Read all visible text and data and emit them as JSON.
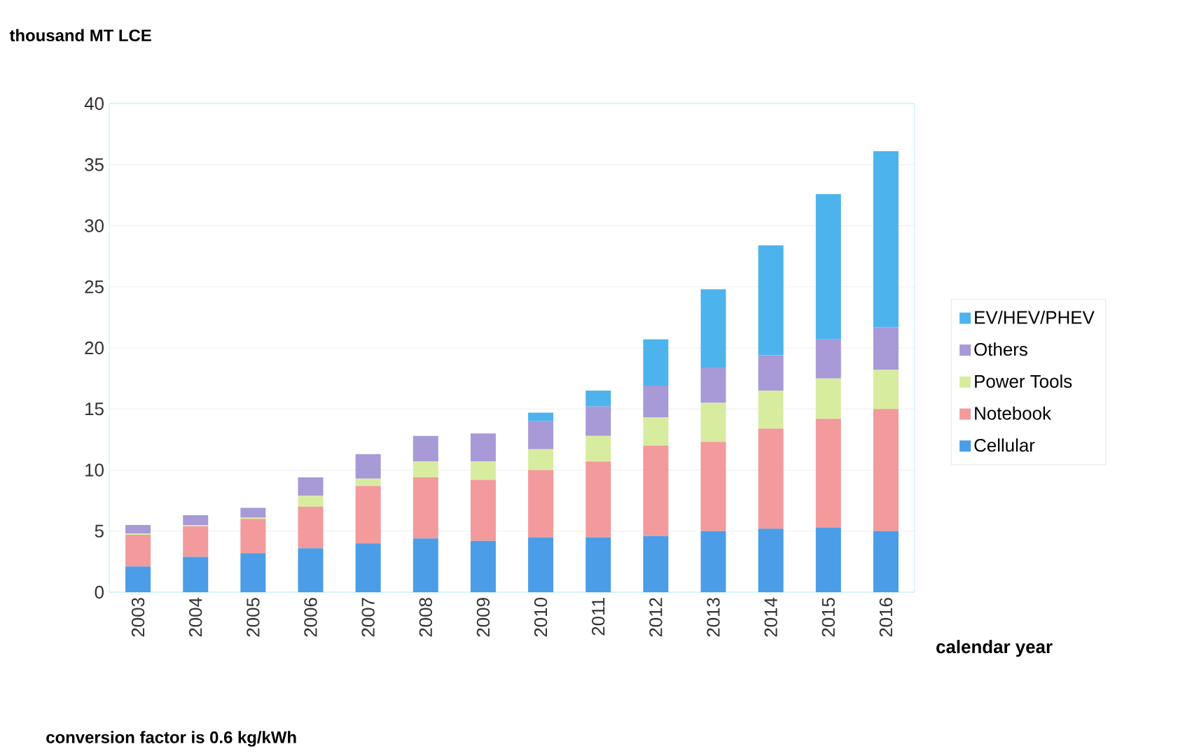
{
  "chart_data": {
    "type": "bar",
    "stacked": true,
    "ylabel": "thousand MT LCE",
    "xlabel": "calendar year",
    "categories": [
      "2003",
      "2004",
      "2005",
      "2006",
      "2007",
      "2008",
      "2009",
      "2010",
      "2011",
      "2012",
      "2013",
      "2014",
      "2015",
      "2016"
    ],
    "series": [
      {
        "name": "Cellular",
        "color": "#4a9de6",
        "values": [
          2.1,
          2.9,
          3.2,
          3.6,
          4.0,
          4.4,
          4.2,
          4.5,
          4.5,
          4.6,
          5.0,
          5.2,
          5.3,
          5.0
        ]
      },
      {
        "name": "Notebook",
        "color": "#f29a9c",
        "values": [
          2.6,
          2.5,
          2.8,
          3.4,
          4.7,
          5.0,
          5.0,
          5.5,
          6.2,
          7.4,
          7.3,
          8.2,
          8.9,
          10.0
        ]
      },
      {
        "name": "Power Tools",
        "color": "#d8eca0",
        "values": [
          0.1,
          0.1,
          0.1,
          0.9,
          0.6,
          1.3,
          1.5,
          1.7,
          2.1,
          2.3,
          3.2,
          3.1,
          3.3,
          3.2
        ]
      },
      {
        "name": "Others",
        "color": "#a79ad6",
        "values": [
          0.7,
          0.8,
          0.8,
          1.5,
          2.0,
          2.1,
          2.3,
          2.3,
          2.4,
          2.6,
          2.9,
          2.9,
          3.2,
          3.5
        ]
      },
      {
        "name": "EV/HEV/PHEV",
        "color": "#4db3ec",
        "values": [
          0,
          0,
          0,
          0,
          0,
          0,
          0,
          0.7,
          1.3,
          3.8,
          6.4,
          9.0,
          11.9,
          14.4
        ]
      }
    ],
    "ylim": [
      0,
      40
    ],
    "yticks": [
      0,
      5,
      10,
      15,
      20,
      25,
      30,
      35,
      40
    ],
    "grid": "y",
    "legend": "right",
    "annotations": [
      "conversion factor is 0.6 kg/kWh"
    ]
  }
}
